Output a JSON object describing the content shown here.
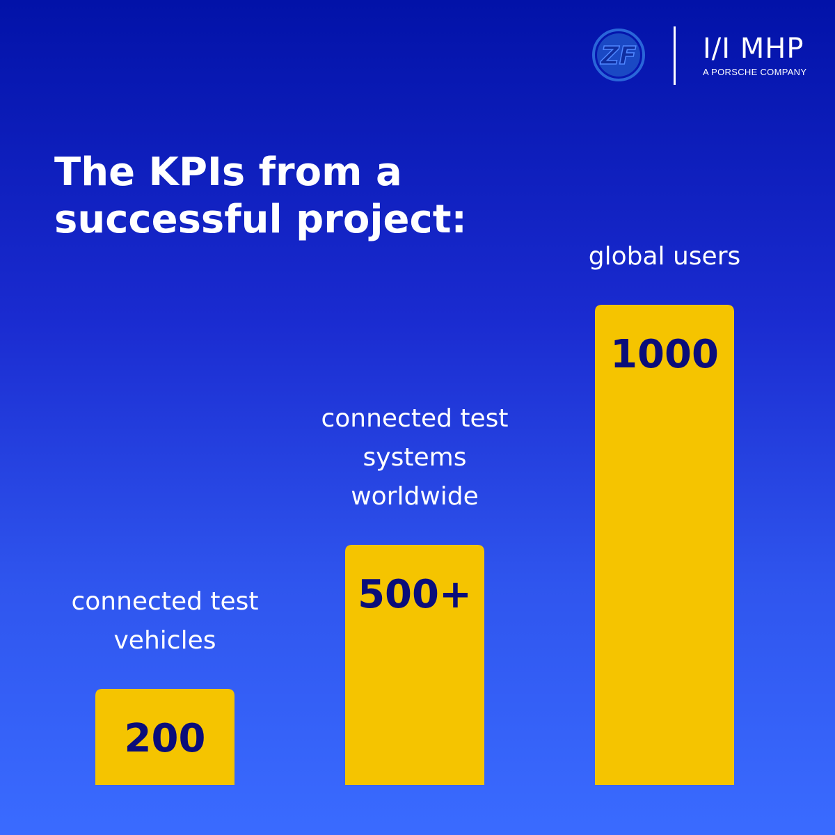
{
  "brand": {
    "logo_left": "ZF",
    "logo_right": "MHP",
    "logo_right_tagline": "A PORSCHE COMPANY",
    "text_color": "#ffffff",
    "zf_color": "#1f4fb8"
  },
  "headline": {
    "line1": "The KPIs from a",
    "line2": "successful project:"
  },
  "chart_data": {
    "type": "bar",
    "categories": [
      [
        "connected test",
        "vehicles"
      ],
      [
        "connected test",
        "systems",
        "worldwide"
      ],
      [
        "global users"
      ]
    ],
    "values": [
      200,
      500,
      1000
    ],
    "value_labels": [
      "200",
      "500+",
      "1000"
    ],
    "bar_color": "#f5c400",
    "value_label_color": "#0a0d7a",
    "category_label_color": "#ffffff",
    "ylim": [
      0,
      1000
    ],
    "grid": false,
    "axes_visible": false,
    "legend": "none"
  }
}
